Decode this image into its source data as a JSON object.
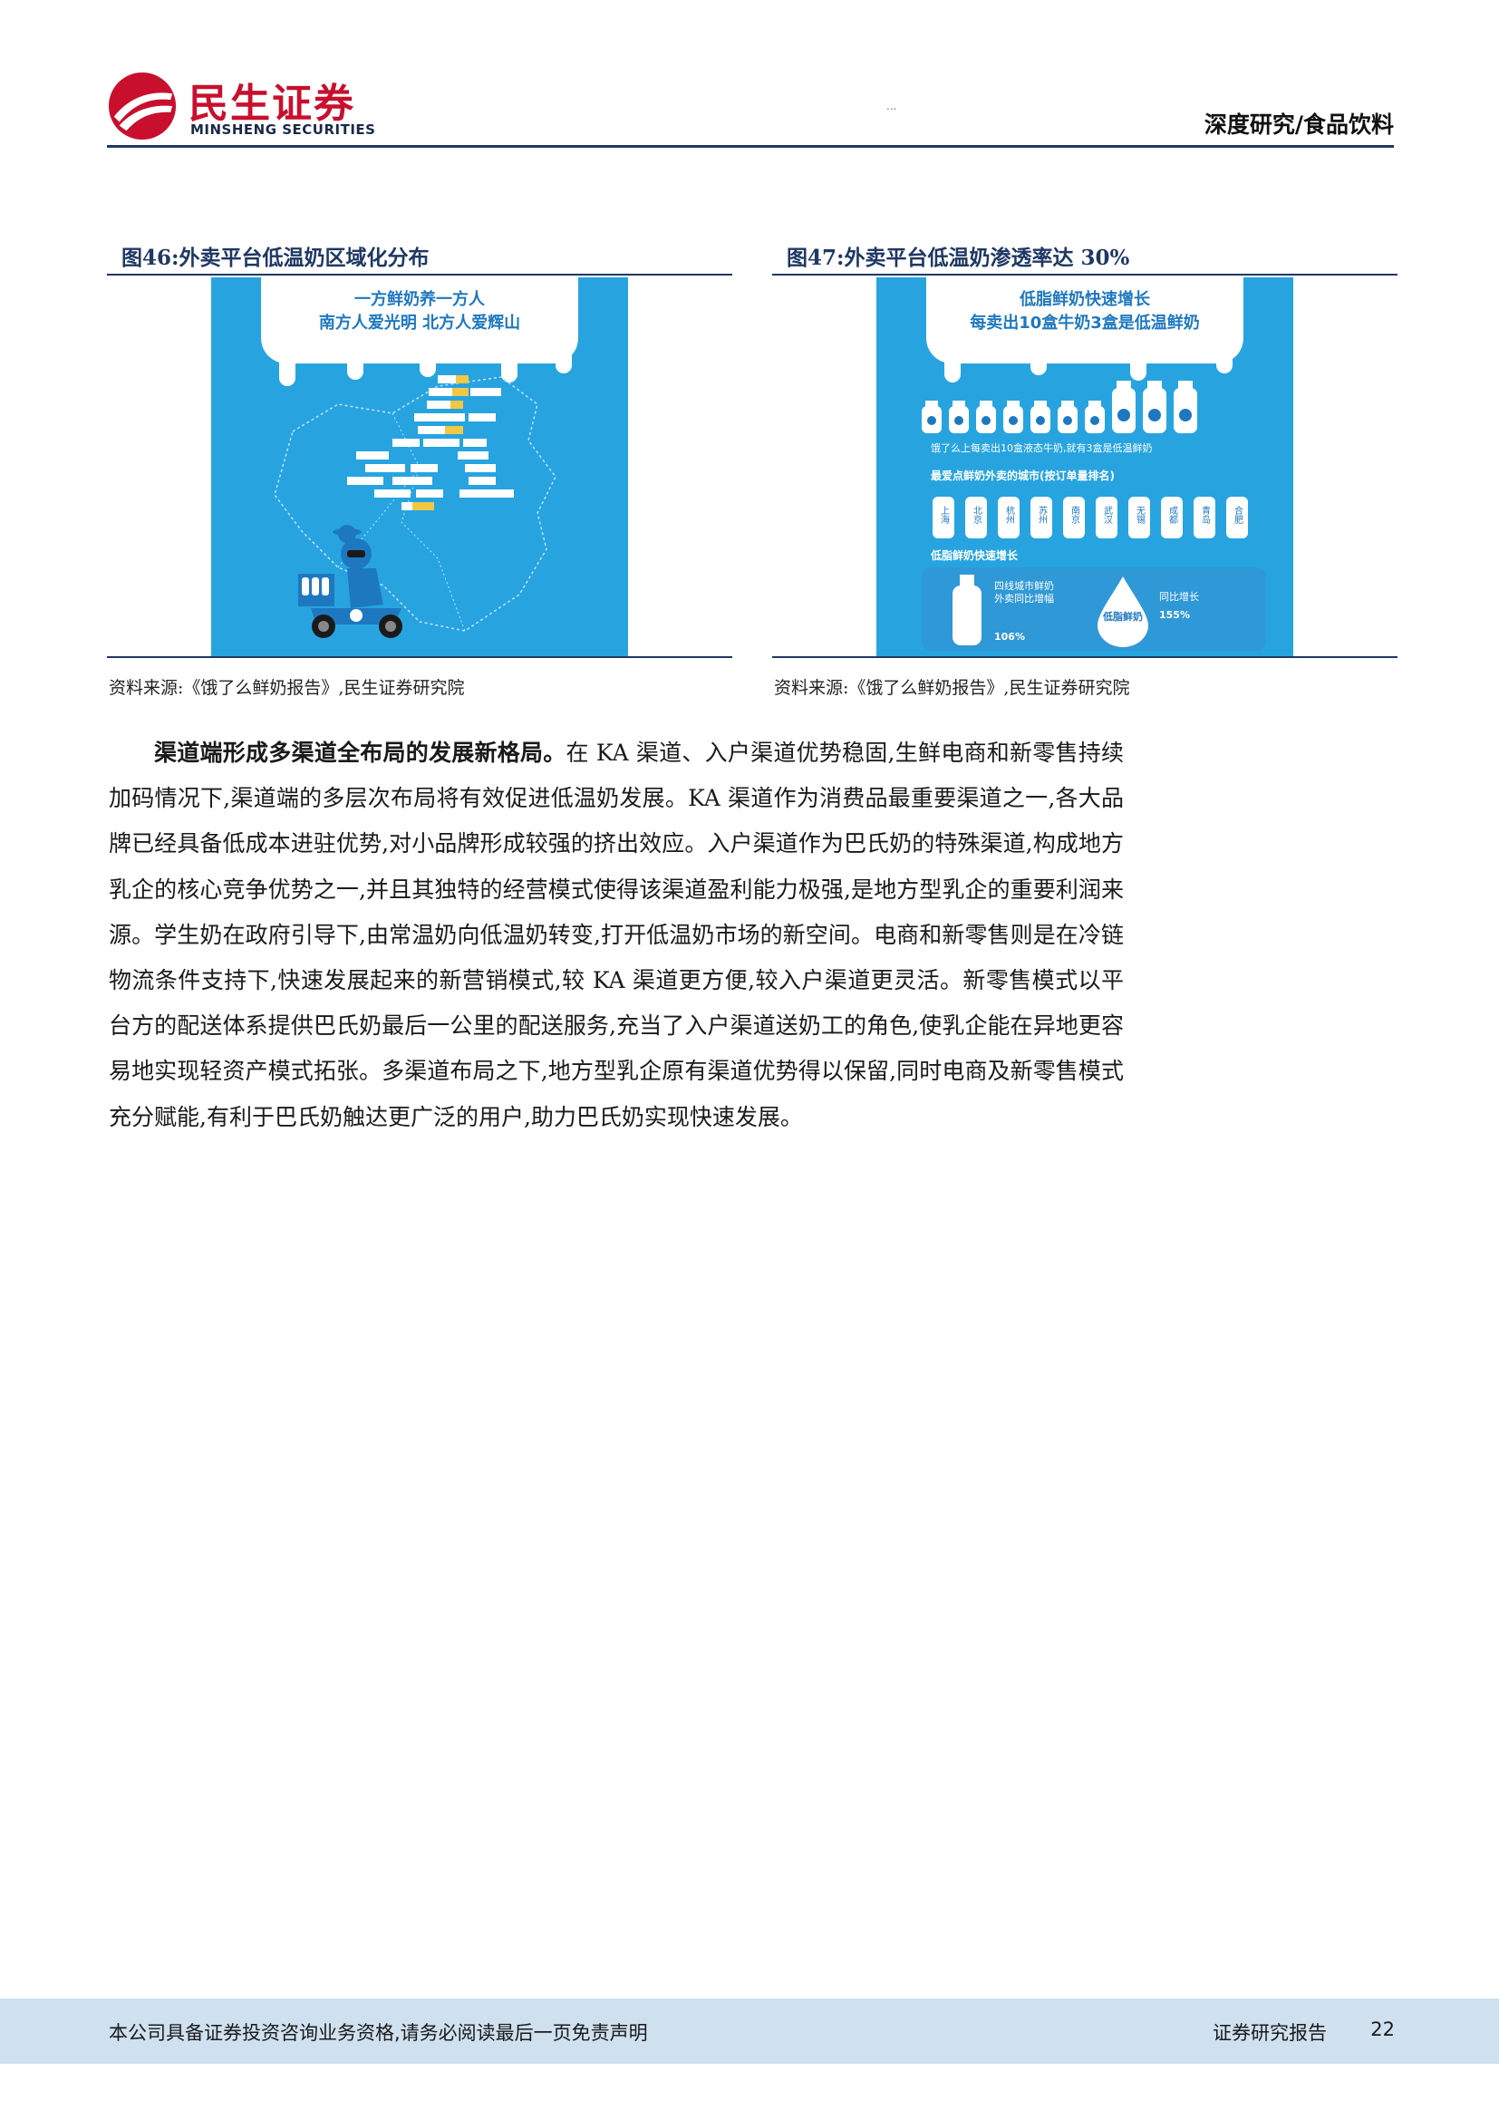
{
  "header": {
    "logo_cn": "民生证券",
    "logo_en": "MINSHENG SECURITIES",
    "section": "深度研究/食品饮料",
    "smudge": "..."
  },
  "figures": [
    {
      "title": "图46:外卖平台低温奶区域化分布",
      "banner_line1": "一方鲜奶养一方人",
      "banner_line2": "南方人爱光明 北方人爱辉山",
      "source": "资料来源:《饿了么鲜奶报告》,民生证券研究院"
    },
    {
      "title": "图47:外卖平台低温奶渗透率达 30%",
      "banner_line1": "低脂鲜奶快速增长",
      "banner_line2": "每卖出10盒牛奶3盒是低温鲜奶",
      "stat_line": "饿了么上每卖出10盒液态牛奶,就有3盒是低温鲜奶",
      "cities_title": "最爱点鲜奶外卖的城市(按订单量排名)",
      "cities": [
        "上海",
        "北京",
        "杭州",
        "苏州",
        "南京",
        "武汉",
        "无锡",
        "成都",
        "青岛",
        "合肥"
      ],
      "growth_title": "低脂鲜奶快速增长",
      "growth_left": "四线城市鲜奶外卖同比增幅",
      "growth_left_value": "106%",
      "growth_right_label": "低脂鲜奶",
      "growth_right": "同比增长",
      "growth_right_value": "155%",
      "source": "资料来源:《饿了么鲜奶报告》,民生证券研究院"
    }
  ],
  "body": {
    "lead": "渠道端形成多渠道全布局的发展新格局。",
    "text": "在 KA 渠道、入户渠道优势稳固,生鲜电商和新零售持续加码情况下,渠道端的多层次布局将有效促进低温奶发展。KA 渠道作为消费品最重要渠道之一,各大品牌已经具备低成本进驻优势,对小品牌形成较强的挤出效应。入户渠道作为巴氏奶的特殊渠道,构成地方乳企的核心竞争优势之一,并且其独特的经营模式使得该渠道盈利能力极强,是地方型乳企的重要利润来源。学生奶在政府引导下,由常温奶向低温奶转变,打开低温奶市场的新空间。电商和新零售则是在冷链物流条件支持下,快速发展起来的新营销模式,较 KA 渠道更方便,较入户渠道更灵活。新零售模式以平台方的配送体系提供巴氏奶最后一公里的配送服务,充当了入户渠道送奶工的角色,使乳企能在异地更容易地实现轻资产模式拓张。多渠道布局之下,地方型乳企原有渠道优势得以保留,同时电商及新零售模式充分赋能,有利于巴氏奶触达更广泛的用户,助力巴氏奶实现快速发展。"
  },
  "footer": {
    "disclaimer": "本公司具备证券投资咨询业务资格,请务必阅读最后一页免责声明",
    "report_type": "证券研究报告",
    "page": "22"
  }
}
